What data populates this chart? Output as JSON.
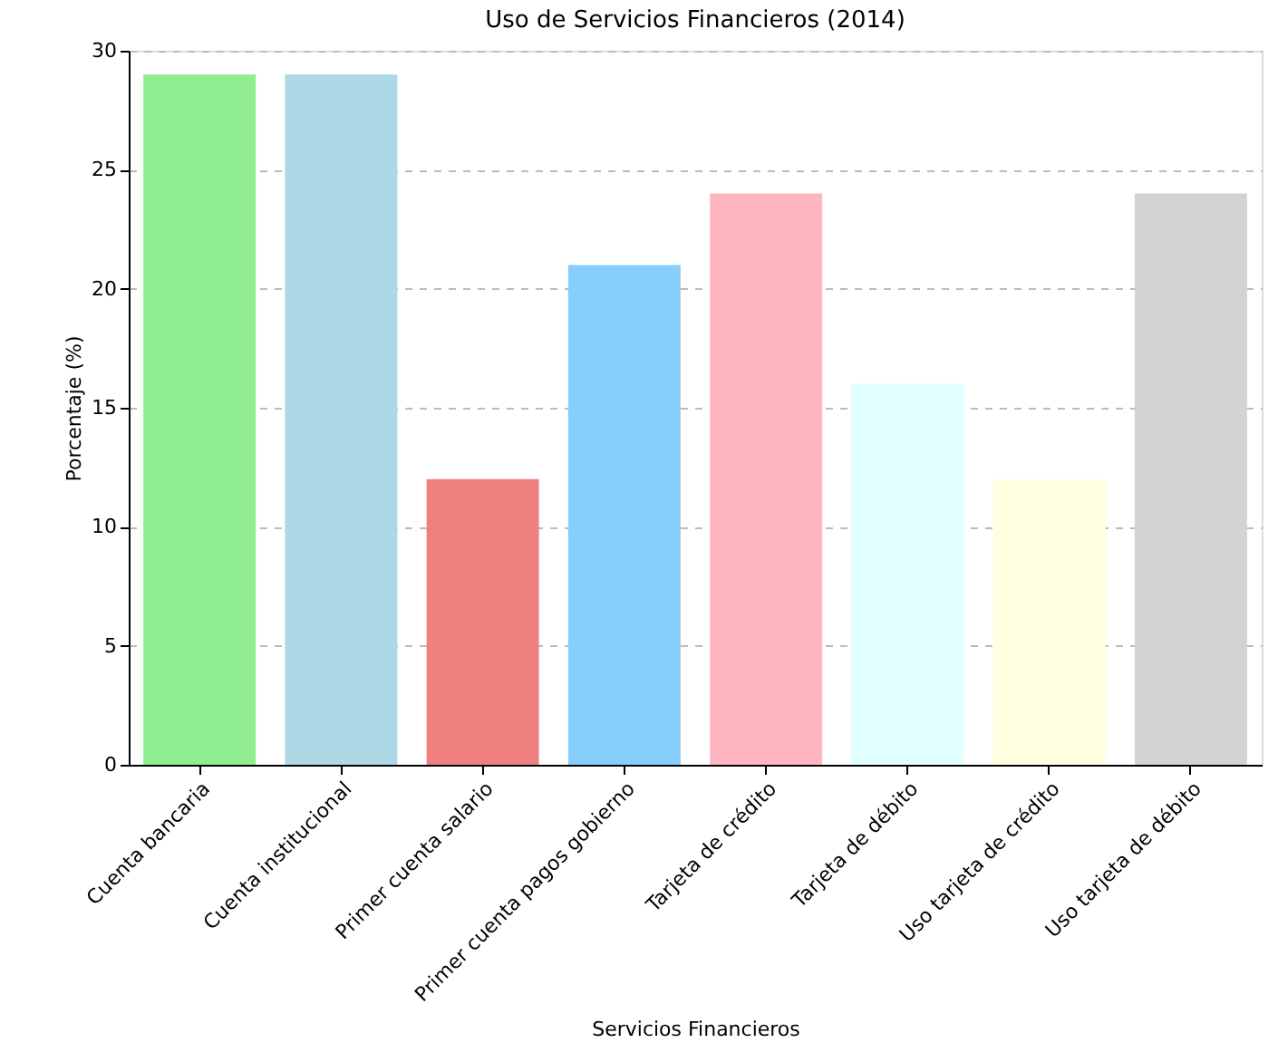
{
  "chart_data": {
    "type": "bar",
    "title": "Uso de Servicios Financieros (2014)",
    "xlabel": "Servicios Financieros",
    "ylabel": "Porcentaje (%)",
    "categories": [
      "Cuenta bancaria",
      "Cuenta institucional",
      "Primer cuenta salario",
      "Primer cuenta pagos gobierno",
      "Tarjeta de crédito",
      "Tarjeta de débito",
      "Uso tarjeta de crédito",
      "Uso tarjeta de débito"
    ],
    "values": [
      29,
      29,
      12,
      21,
      24,
      16,
      12,
      24
    ],
    "colors": [
      "#90ee90",
      "#add8e6",
      "#f08080",
      "#87cefa",
      "#ffb6c1",
      "#e0ffff",
      "#ffffe0",
      "#d3d3d3"
    ],
    "ylim": [
      0,
      30
    ],
    "yticks": [
      0,
      5,
      10,
      15,
      20,
      25,
      30
    ],
    "grid": "y"
  }
}
